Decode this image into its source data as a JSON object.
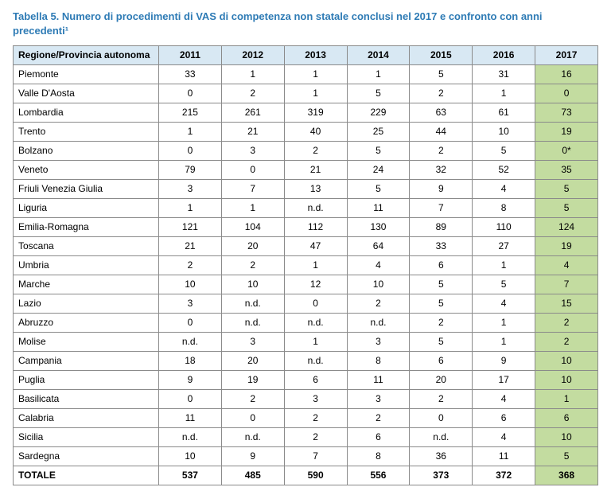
{
  "title": "Tabella 5. Numero di procedimenti di VAS di competenza non statale conclusi nel 2017 e confronto con anni precedenti¹",
  "table": {
    "header_region": "Regione/Provincia autonoma",
    "years": [
      "2011",
      "2012",
      "2013",
      "2014",
      "2015",
      "2016",
      "2017"
    ],
    "rows": [
      {
        "region": "Piemonte",
        "cells": [
          "33",
          "1",
          "1",
          "1",
          "5",
          "31",
          "16"
        ]
      },
      {
        "region": "Valle D'Aosta",
        "cells": [
          "0",
          "2",
          "1",
          "5",
          "2",
          "1",
          "0"
        ]
      },
      {
        "region": "Lombardia",
        "cells": [
          "215",
          "261",
          "319",
          "229",
          "63",
          "61",
          "73"
        ]
      },
      {
        "region": "Trento",
        "cells": [
          "1",
          "21",
          "40",
          "25",
          "44",
          "10",
          "19"
        ]
      },
      {
        "region": "Bolzano",
        "cells": [
          "0",
          "3",
          "2",
          "5",
          "2",
          "5",
          "0*"
        ]
      },
      {
        "region": "Veneto",
        "cells": [
          "79",
          "0",
          "21",
          "24",
          "32",
          "52",
          "35"
        ]
      },
      {
        "region": "Friuli Venezia Giulia",
        "cells": [
          "3",
          "7",
          "13",
          "5",
          "9",
          "4",
          "5"
        ]
      },
      {
        "region": "Liguria",
        "cells": [
          "1",
          "1",
          "n.d.",
          "11",
          "7",
          "8",
          "5"
        ]
      },
      {
        "region": "Emilia-Romagna",
        "cells": [
          "121",
          "104",
          "112",
          "130",
          "89",
          "110",
          "124"
        ]
      },
      {
        "region": "Toscana",
        "cells": [
          "21",
          "20",
          "47",
          "64",
          "33",
          "27",
          "19"
        ]
      },
      {
        "region": "Umbria",
        "cells": [
          "2",
          "2",
          "1",
          "4",
          "6",
          "1",
          "4"
        ]
      },
      {
        "region": "Marche",
        "cells": [
          "10",
          "10",
          "12",
          "10",
          "5",
          "5",
          "7"
        ]
      },
      {
        "region": "Lazio",
        "cells": [
          "3",
          "n.d.",
          "0",
          "2",
          "5",
          "4",
          "15"
        ]
      },
      {
        "region": "Abruzzo",
        "cells": [
          "0",
          "n.d.",
          "n.d.",
          "n.d.",
          "2",
          "1",
          "2"
        ]
      },
      {
        "region": "Molise",
        "cells": [
          "n.d.",
          "3",
          "1",
          "3",
          "5",
          "1",
          "2"
        ]
      },
      {
        "region": "Campania",
        "cells": [
          "18",
          "20",
          "n.d.",
          "8",
          "6",
          "9",
          "10"
        ]
      },
      {
        "region": "Puglia",
        "cells": [
          "9",
          "19",
          "6",
          "11",
          "20",
          "17",
          "10"
        ]
      },
      {
        "region": "Basilicata",
        "cells": [
          "0",
          "2",
          "3",
          "3",
          "2",
          "4",
          "1"
        ]
      },
      {
        "region": "Calabria",
        "cells": [
          "11",
          "0",
          "2",
          "2",
          "0",
          "6",
          "6"
        ]
      },
      {
        "region": "Sicilia",
        "cells": [
          "n.d.",
          "n.d.",
          "2",
          "6",
          "n.d.",
          "4",
          "10"
        ]
      },
      {
        "region": "Sardegna",
        "cells": [
          "10",
          "9",
          "7",
          "8",
          "36",
          "11",
          "5"
        ]
      }
    ],
    "total_label": "TOTALE",
    "totals": [
      "537",
      "485",
      "590",
      "556",
      "373",
      "372",
      "368"
    ],
    "highlight_column_index": 6,
    "colors": {
      "header_bg": "#d8e8f3",
      "highlight_bg": "#c3dca0",
      "border": "#8a8a8a",
      "title_color": "#2e7bb5"
    }
  }
}
